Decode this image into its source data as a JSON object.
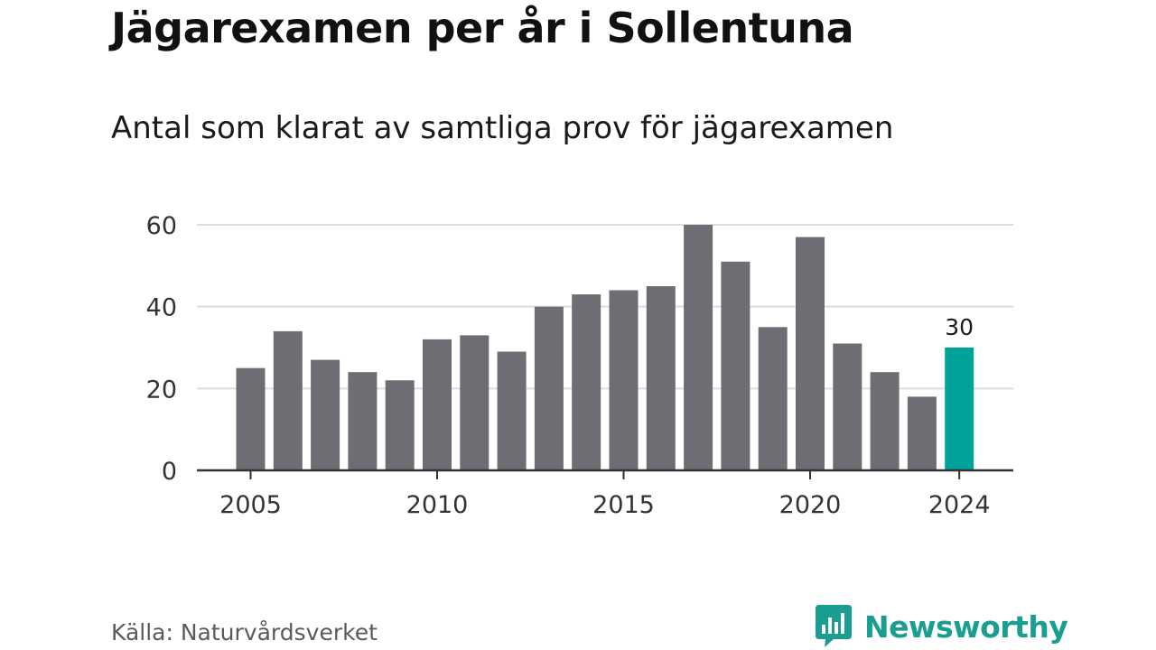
{
  "chart_data": {
    "type": "bar",
    "title": "Jägarexamen per år i Sollentuna",
    "subtitle": "Antal som klarat av samtliga prov för jägarexamen",
    "x": [
      2005,
      2006,
      2007,
      2008,
      2009,
      2010,
      2011,
      2012,
      2013,
      2014,
      2015,
      2016,
      2017,
      2018,
      2019,
      2020,
      2021,
      2022,
      2023,
      2024
    ],
    "values": [
      25,
      34,
      27,
      24,
      22,
      32,
      33,
      29,
      40,
      43,
      44,
      45,
      60,
      51,
      35,
      57,
      31,
      24,
      18,
      30
    ],
    "x_ticks": [
      "2005",
      "2010",
      "2015",
      "2020",
      "2024"
    ],
    "y_ticks": [
      "0",
      "20",
      "40",
      "60"
    ],
    "ylim": [
      0,
      60
    ],
    "grid": true,
    "highlight": {
      "x": 2024,
      "label": "30"
    },
    "colors": {
      "bar": "#6e6d73",
      "highlight": "#00a39a",
      "grid": "#dddddd",
      "axis": "#333333"
    }
  },
  "source": "Källa: Naturvårdsverket",
  "brand": {
    "name": "Newsworthy",
    "logo_icon": "newsworthy-logo-icon",
    "color": "#1a9e92"
  }
}
